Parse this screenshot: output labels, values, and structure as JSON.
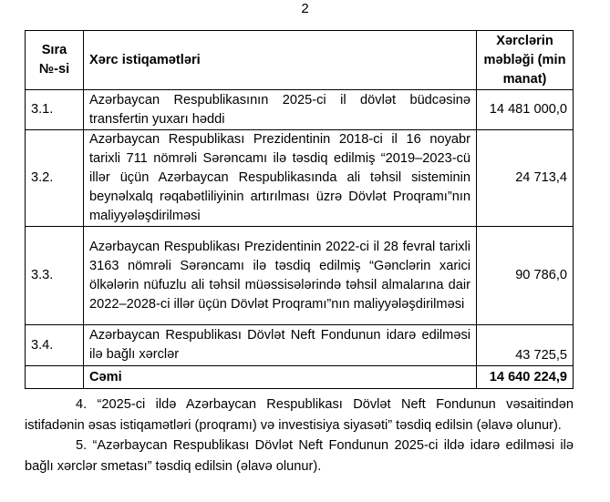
{
  "page_number": "2",
  "table": {
    "headers": [
      "Sıra №-si",
      "Xərc istiqamətləri",
      "Xərclərin məbləği (min manat)"
    ],
    "rows": [
      {
        "num": "3.1.",
        "text": "Azərbaycan Respublikasının 2025-ci il dövlət büdcəsinə transfertin yuxarı həddi",
        "amount": "14 481 000,0"
      },
      {
        "num": "3.2.",
        "text": "Azərbaycan Respublikası Prezidentinin 2018-ci il 16 noyabr tarixli 711 nömrəli Sərəncamı ilə təsdiq edilmiş “2019–2023-cü illər üçün Azərbaycan Respublikasında ali təhsil sisteminin beynəlxalq rəqabətliliyinin artırılması üzrə Dövlət Proqramı”nın maliyyələşdirilməsi",
        "amount": "24 713,4"
      },
      {
        "num": "3.3.",
        "text": "Azərbaycan Respublikası Prezidentinin 2022-ci il 28 fevral tarixli 3163 nömrəli Sərəncamı ilə təsdiq edilmiş “Gənclərin xarici ölkələrin nüfuzlu ali təhsil müəssisələrində təhsil almalarına dair 2022–2028-ci illər üçün Dövlət Proqramı”nın maliyyələşdirilməsi",
        "amount": "90 786,0"
      },
      {
        "num": "3.4.",
        "text": "Azərbaycan Respublikası Dövlət Neft Fondunun idarə edilməsi ilə bağlı xərclər",
        "amount": "43 725,5"
      }
    ],
    "total": {
      "label": "Cəmi",
      "amount": "14 640 224,9"
    }
  },
  "paragraphs": [
    "4. “2025-ci ildə Azərbaycan Respublikası Dövlət Neft Fondunun vəsaitindən istifadənin əsas istiqamətləri (proqramı) və investisiya siyasəti” təsdiq edilsin (əlavə olunur).",
    "5. “Azərbaycan Respublikası Dövlət Neft Fondunun 2025-ci ildə idarə edilməsi ilə bağlı xərclər smetası” təsdiq edilsin (əlavə olunur)."
  ]
}
